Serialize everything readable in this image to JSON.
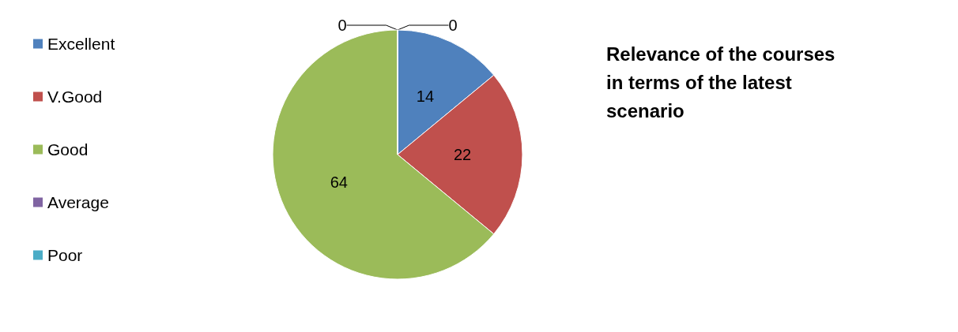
{
  "chart_data": {
    "type": "pie",
    "title": "Relevance of the courses in terms of the latest scenario",
    "categories": [
      "Excellent",
      "V.Good",
      "Good",
      "Average",
      "Poor"
    ],
    "values": [
      14,
      22,
      64,
      0,
      0
    ],
    "colors": [
      "#4f81bd",
      "#c0504d",
      "#9bbb59",
      "#8064a2",
      "#4bacc6"
    ],
    "value_labels": [
      "14",
      "22",
      "64",
      "0",
      "0"
    ],
    "legend": "left"
  }
}
